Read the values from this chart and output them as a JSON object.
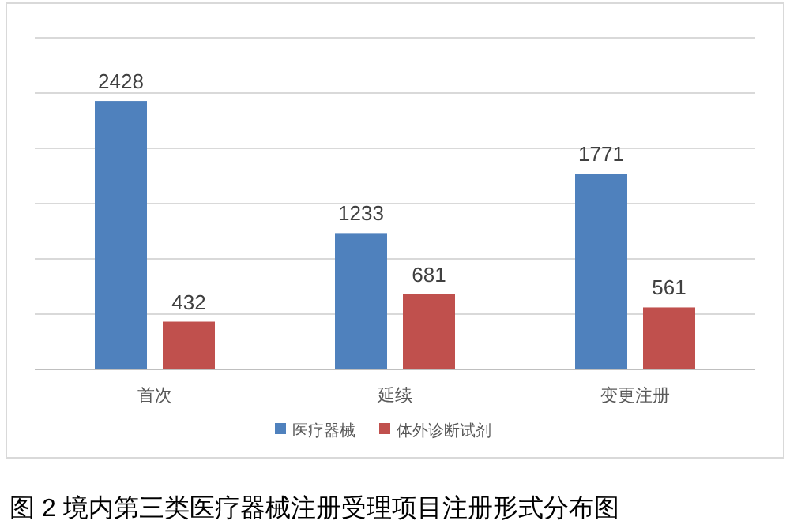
{
  "chart_data": {
    "type": "bar",
    "title": "图 2 境内第三类医疗器械注册受理项目注册形式分布图",
    "categories": [
      "首次",
      "延续",
      "变更注册"
    ],
    "series": [
      {
        "name": "医疗器械",
        "color": "#4f81bd",
        "values": [
          2428,
          1233,
          1771
        ]
      },
      {
        "name": "体外诊断试剂",
        "color": "#c0504d",
        "values": [
          432,
          681,
          561
        ]
      }
    ],
    "ylim": [
      0,
      3000
    ],
    "yticks": [
      {
        "value": 0,
        "label": null
      },
      {
        "value": 500,
        "label": null
      },
      {
        "value": 1000,
        "label": null
      },
      {
        "value": 1500,
        "label": null
      },
      {
        "value": 2000,
        "label": null
      },
      {
        "value": 2500,
        "label": null
      },
      {
        "value": 3000,
        "label": null
      }
    ],
    "tick_labels": "x",
    "grid": "y",
    "legend": "bottom",
    "data_labels": true
  }
}
